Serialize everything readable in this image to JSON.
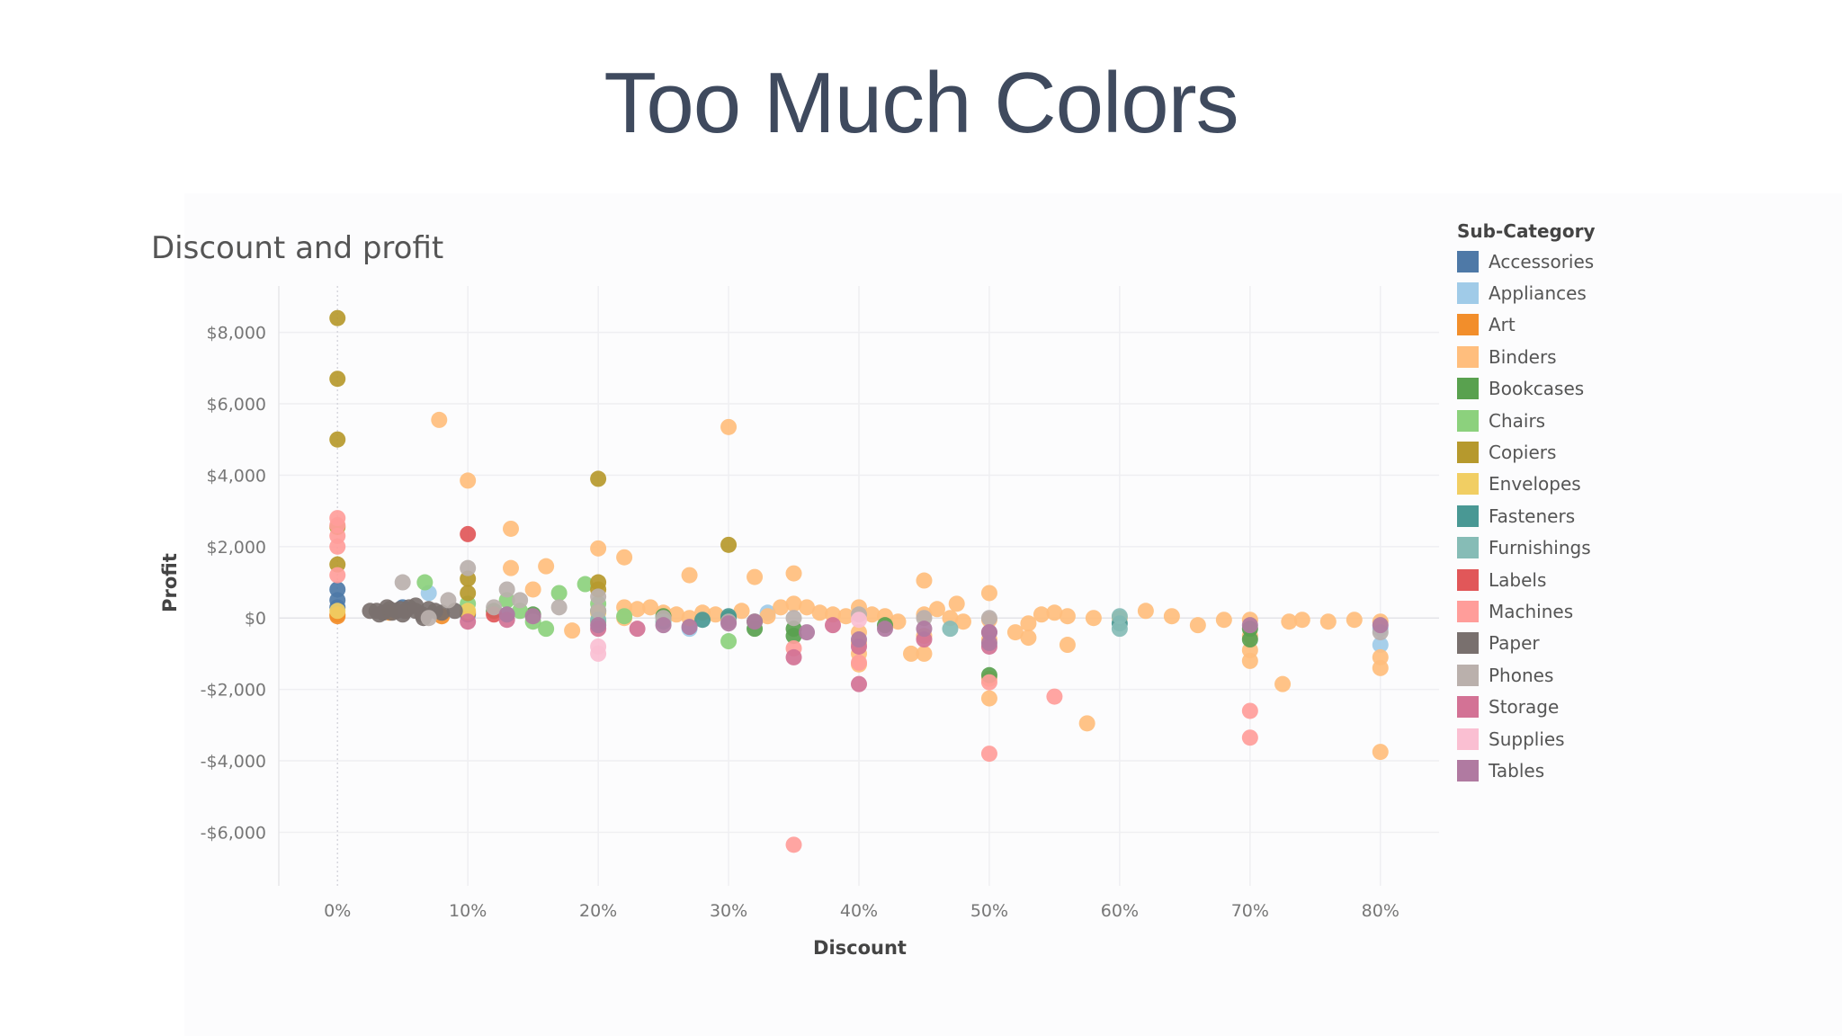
{
  "slide": {
    "title": "Too Much Colors"
  },
  "legend": {
    "title": "Sub-Category"
  },
  "chart_data": {
    "type": "scatter",
    "title": "Discount and profit",
    "xlabel": "Discount",
    "ylabel": "Profit",
    "xlim": [
      -0.045,
      0.845
    ],
    "ylim": [
      -7500,
      9300
    ],
    "x_ticks": [
      0,
      0.1,
      0.2,
      0.3,
      0.4,
      0.5,
      0.6,
      0.7,
      0.8
    ],
    "x_tick_labels": [
      "0%",
      "10%",
      "20%",
      "30%",
      "40%",
      "50%",
      "60%",
      "70%",
      "80%"
    ],
    "y_ticks": [
      8000,
      6000,
      4000,
      2000,
      0,
      -2000,
      -4000,
      -6000
    ],
    "y_tick_labels": [
      "$8,000",
      "$6,000",
      "$4,000",
      "$2,000",
      "$0",
      "-$2,000",
      "-$4,000",
      "-$6,000"
    ],
    "grid": true,
    "legend_position": "right",
    "series": [
      {
        "name": "Accessories",
        "color": "#4e79a7",
        "points": [
          [
            0,
            500
          ],
          [
            0,
            800
          ],
          [
            0,
            300
          ],
          [
            0.05,
            300
          ],
          [
            0.1,
            100
          ]
        ]
      },
      {
        "name": "Appliances",
        "color": "#a0cbe8",
        "points": [
          [
            0.07,
            700
          ],
          [
            0.27,
            -300
          ],
          [
            0.33,
            150
          ],
          [
            0.8,
            -750
          ],
          [
            0.8,
            -300
          ],
          [
            0.05,
            200
          ]
        ]
      },
      {
        "name": "Art",
        "color": "#f28e2b",
        "points": [
          [
            0,
            100
          ],
          [
            0,
            50
          ],
          [
            0.08,
            50
          ],
          [
            0.1,
            150
          ],
          [
            0.04,
            150
          ]
        ]
      },
      {
        "name": "Binders",
        "color": "#ffbe7d",
        "points": [
          [
            0.078,
            5550
          ],
          [
            0.1,
            3850
          ],
          [
            0.133,
            2500
          ],
          [
            0.3,
            5350
          ],
          [
            0.2,
            1950
          ],
          [
            0.22,
            1700
          ],
          [
            0.27,
            1200
          ],
          [
            0.32,
            1150
          ],
          [
            0.35,
            1250
          ],
          [
            0.45,
            1050
          ],
          [
            0.5,
            700
          ],
          [
            0.133,
            1400
          ],
          [
            0.16,
            1450
          ],
          [
            0.15,
            800
          ],
          [
            0.18,
            -350
          ],
          [
            0.22,
            300
          ],
          [
            0.23,
            250
          ],
          [
            0.24,
            300
          ],
          [
            0.25,
            150
          ],
          [
            0.26,
            100
          ],
          [
            0.28,
            150
          ],
          [
            0.29,
            100
          ],
          [
            0.31,
            200
          ],
          [
            0.33,
            50
          ],
          [
            0.34,
            300
          ],
          [
            0.35,
            400
          ],
          [
            0.36,
            300
          ],
          [
            0.37,
            150
          ],
          [
            0.38,
            100
          ],
          [
            0.39,
            50
          ],
          [
            0.4,
            300
          ],
          [
            0.4,
            -400
          ],
          [
            0.4,
            -700
          ],
          [
            0.4,
            -1000
          ],
          [
            0.4,
            -1300
          ],
          [
            0.41,
            100
          ],
          [
            0.42,
            50
          ],
          [
            0.43,
            -100
          ],
          [
            0.44,
            -1000
          ],
          [
            0.45,
            -1000
          ],
          [
            0.45,
            -500
          ],
          [
            0.45,
            100
          ],
          [
            0.46,
            250
          ],
          [
            0.47,
            0
          ],
          [
            0.475,
            400
          ],
          [
            0.48,
            -100
          ],
          [
            0.5,
            -2250
          ],
          [
            0.5,
            -1700
          ],
          [
            0.5,
            -600
          ],
          [
            0.5,
            -50
          ],
          [
            0.52,
            -400
          ],
          [
            0.53,
            -150
          ],
          [
            0.53,
            -550
          ],
          [
            0.54,
            100
          ],
          [
            0.55,
            150
          ],
          [
            0.56,
            -750
          ],
          [
            0.56,
            50
          ],
          [
            0.575,
            -2950
          ],
          [
            0.58,
            0
          ],
          [
            0.62,
            200
          ],
          [
            0.64,
            50
          ],
          [
            0.66,
            -200
          ],
          [
            0.68,
            -50
          ],
          [
            0.7,
            -50
          ],
          [
            0.7,
            -500
          ],
          [
            0.7,
            -900
          ],
          [
            0.7,
            -1200
          ],
          [
            0.725,
            -1850
          ],
          [
            0.73,
            -100
          ],
          [
            0.74,
            -50
          ],
          [
            0.76,
            -100
          ],
          [
            0.78,
            -50
          ],
          [
            0.8,
            -100
          ],
          [
            0.8,
            -1100
          ],
          [
            0.8,
            -1400
          ],
          [
            0.8,
            -3750
          ],
          [
            0.22,
            0
          ],
          [
            0.27,
            0
          ],
          [
            0.6,
            0
          ]
        ]
      },
      {
        "name": "Bookcases",
        "color": "#59a14f",
        "points": [
          [
            0.12,
            200
          ],
          [
            0.15,
            100
          ],
          [
            0.2,
            200
          ],
          [
            0.3,
            0
          ],
          [
            0.32,
            -300
          ],
          [
            0.32,
            -100
          ],
          [
            0.35,
            -300
          ],
          [
            0.35,
            -500
          ],
          [
            0.5,
            -1600
          ],
          [
            0.7,
            -300
          ],
          [
            0.7,
            -600
          ],
          [
            0.25,
            50
          ],
          [
            0.42,
            -200
          ]
        ]
      },
      {
        "name": "Chairs",
        "color": "#8cd17d",
        "points": [
          [
            0.067,
            1000
          ],
          [
            0.13,
            500
          ],
          [
            0.15,
            -100
          ],
          [
            0.16,
            -300
          ],
          [
            0.17,
            700
          ],
          [
            0.19,
            950
          ],
          [
            0.2,
            400
          ],
          [
            0.2,
            -100
          ],
          [
            0.22,
            50
          ],
          [
            0.3,
            -650
          ],
          [
            0.1,
            400
          ],
          [
            0.14,
            200
          ]
        ]
      },
      {
        "name": "Copiers",
        "color": "#b6992d",
        "points": [
          [
            0,
            8400
          ],
          [
            0,
            6700
          ],
          [
            0,
            5000
          ],
          [
            0.2,
            3900
          ],
          [
            0.3,
            2050
          ],
          [
            0,
            1500
          ],
          [
            0.1,
            1100
          ],
          [
            0.2,
            800
          ],
          [
            0.1,
            700
          ],
          [
            0.2,
            1000
          ],
          [
            0,
            2550
          ]
        ]
      },
      {
        "name": "Envelopes",
        "color": "#f1ce63",
        "points": [
          [
            0.1,
            200
          ],
          [
            0,
            200
          ],
          [
            0.2,
            150
          ]
        ]
      },
      {
        "name": "Fasteners",
        "color": "#499894",
        "points": [
          [
            0.3,
            50
          ],
          [
            0.6,
            -150
          ],
          [
            0.28,
            -50
          ]
        ]
      },
      {
        "name": "Furnishings",
        "color": "#86bcb6",
        "points": [
          [
            0.13,
            100
          ],
          [
            0.25,
            -100
          ],
          [
            0.6,
            -300
          ],
          [
            0.47,
            -300
          ],
          [
            0.2,
            -50
          ],
          [
            0.6,
            50
          ]
        ]
      },
      {
        "name": "Labels",
        "color": "#e15759",
        "points": [
          [
            0.1,
            2350
          ],
          [
            0.12,
            100
          ]
        ]
      },
      {
        "name": "Machines",
        "color": "#ff9d9a",
        "points": [
          [
            0,
            2800
          ],
          [
            0,
            2600
          ],
          [
            0,
            2300
          ],
          [
            0,
            2000
          ],
          [
            0,
            1200
          ],
          [
            0.35,
            -6350
          ],
          [
            0.5,
            -3800
          ],
          [
            0.55,
            -2200
          ],
          [
            0.7,
            -2600
          ],
          [
            0.7,
            -3350
          ],
          [
            0.5,
            -1800
          ],
          [
            0.35,
            -850
          ],
          [
            0.4,
            -1250
          ]
        ]
      },
      {
        "name": "Paper",
        "color": "#79706e",
        "points": [
          [
            0.03,
            200
          ],
          [
            0.035,
            150
          ],
          [
            0.04,
            250
          ],
          [
            0.045,
            200
          ],
          [
            0.05,
            100
          ],
          [
            0.055,
            300
          ],
          [
            0.06,
            200
          ],
          [
            0.065,
            100
          ],
          [
            0.07,
            250
          ],
          [
            0.075,
            200
          ],
          [
            0.025,
            200
          ],
          [
            0.08,
            150
          ],
          [
            0.09,
            200
          ],
          [
            0.032,
            100
          ],
          [
            0.038,
            300
          ],
          [
            0.042,
            150
          ],
          [
            0.048,
            250
          ],
          [
            0.052,
            200
          ],
          [
            0.06,
            350
          ],
          [
            0.066,
            0
          ]
        ]
      },
      {
        "name": "Phones",
        "color": "#bab0ac",
        "points": [
          [
            0.05,
            1000
          ],
          [
            0.085,
            500
          ],
          [
            0.1,
            1400
          ],
          [
            0.12,
            300
          ],
          [
            0.13,
            800
          ],
          [
            0.14,
            500
          ],
          [
            0.2,
            600
          ],
          [
            0.2,
            200
          ],
          [
            0.25,
            0
          ],
          [
            0.3,
            -100
          ],
          [
            0.35,
            0
          ],
          [
            0.4,
            100
          ],
          [
            0.45,
            0
          ],
          [
            0.5,
            0
          ],
          [
            0.8,
            -400
          ],
          [
            0.07,
            0
          ],
          [
            0.17,
            300
          ]
        ]
      },
      {
        "name": "Storage",
        "color": "#d37295",
        "points": [
          [
            0.1,
            -100
          ],
          [
            0.13,
            -50
          ],
          [
            0.2,
            -300
          ],
          [
            0.23,
            -300
          ],
          [
            0.35,
            -1100
          ],
          [
            0.38,
            -200
          ],
          [
            0.4,
            -1850
          ],
          [
            0.4,
            -800
          ],
          [
            0.45,
            -600
          ],
          [
            0.5,
            -800
          ],
          [
            0.5,
            -400
          ]
        ]
      },
      {
        "name": "Supplies",
        "color": "#fabfd2",
        "points": [
          [
            0.2,
            -800
          ],
          [
            0.2,
            -1000
          ],
          [
            0.4,
            -50
          ]
        ]
      },
      {
        "name": "Tables",
        "color": "#b07aa1",
        "points": [
          [
            0.13,
            100
          ],
          [
            0.15,
            50
          ],
          [
            0.2,
            -200
          ],
          [
            0.25,
            -200
          ],
          [
            0.3,
            -150
          ],
          [
            0.36,
            -400
          ],
          [
            0.4,
            -600
          ],
          [
            0.42,
            -300
          ],
          [
            0.45,
            -300
          ],
          [
            0.5,
            -400
          ],
          [
            0.5,
            -700
          ],
          [
            0.7,
            -200
          ],
          [
            0.8,
            -200
          ],
          [
            0.27,
            -250
          ],
          [
            0.32,
            -100
          ]
        ]
      }
    ]
  }
}
